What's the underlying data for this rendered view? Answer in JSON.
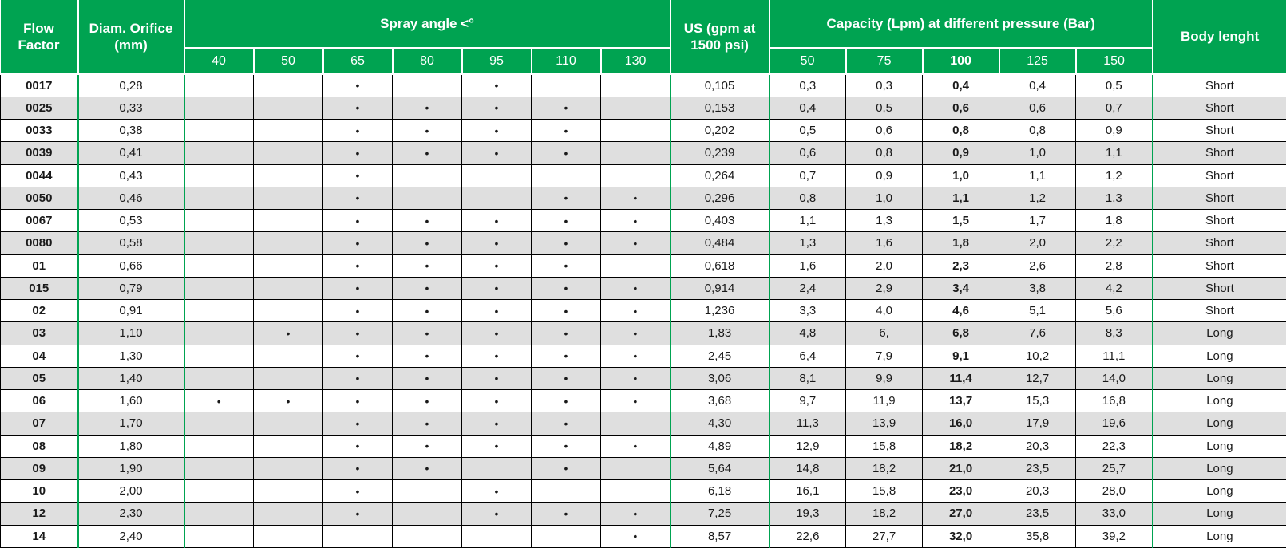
{
  "colors": {
    "header_green": "#00A351",
    "alt_row_gray": "#DFDFDF"
  },
  "table": {
    "header": {
      "flow_factor": "Flow Factor",
      "diam_orifice": "Diam. Orifice (mm)",
      "spray_angle": "Spray angle <°",
      "spray_angle_cols": [
        "40",
        "50",
        "65",
        "80",
        "95",
        "110",
        "130"
      ],
      "us_gpm": "US (gpm at 1500 psi)",
      "capacity": "Capacity (Lpm) at different pressure (Bar)",
      "capacity_cols": [
        "50",
        "75",
        "100",
        "125",
        "150"
      ],
      "body_length": "Body lenght"
    },
    "dot_symbol": "•",
    "rows": [
      {
        "flow": "0017",
        "orifice": "0,28",
        "angles": [
          0,
          0,
          1,
          0,
          1,
          0,
          0
        ],
        "us": "0,105",
        "capacity": [
          "0,3",
          "0,3",
          "0,4",
          "0,4",
          "0,5"
        ],
        "body": "Short"
      },
      {
        "flow": "0025",
        "orifice": "0,33",
        "angles": [
          0,
          0,
          1,
          1,
          1,
          1,
          0
        ],
        "us": "0,153",
        "capacity": [
          "0,4",
          "0,5",
          "0,6",
          "0,6",
          "0,7"
        ],
        "body": "Short"
      },
      {
        "flow": "0033",
        "orifice": "0,38",
        "angles": [
          0,
          0,
          1,
          1,
          1,
          1,
          0
        ],
        "us": "0,202",
        "capacity": [
          "0,5",
          "0,6",
          "0,8",
          "0,8",
          "0,9"
        ],
        "body": "Short"
      },
      {
        "flow": "0039",
        "orifice": "0,41",
        "angles": [
          0,
          0,
          1,
          1,
          1,
          1,
          0
        ],
        "us": "0,239",
        "capacity": [
          "0,6",
          "0,8",
          "0,9",
          "1,0",
          "1,1"
        ],
        "body": "Short"
      },
      {
        "flow": "0044",
        "orifice": "0,43",
        "angles": [
          0,
          0,
          1,
          0,
          0,
          0,
          0
        ],
        "us": "0,264",
        "capacity": [
          "0,7",
          "0,9",
          "1,0",
          "1,1",
          "1,2"
        ],
        "body": "Short"
      },
      {
        "flow": "0050",
        "orifice": "0,46",
        "angles": [
          0,
          0,
          1,
          0,
          0,
          1,
          1
        ],
        "us": "0,296",
        "capacity": [
          "0,8",
          "1,0",
          "1,1",
          "1,2",
          "1,3"
        ],
        "body": "Short"
      },
      {
        "flow": "0067",
        "orifice": "0,53",
        "angles": [
          0,
          0,
          1,
          1,
          1,
          1,
          1
        ],
        "us": "0,403",
        "capacity": [
          "1,1",
          "1,3",
          "1,5",
          "1,7",
          "1,8"
        ],
        "body": "Short"
      },
      {
        "flow": "0080",
        "orifice": "0,58",
        "angles": [
          0,
          0,
          1,
          1,
          1,
          1,
          1
        ],
        "us": "0,484",
        "capacity": [
          "1,3",
          "1,6",
          "1,8",
          "2,0",
          "2,2"
        ],
        "body": "Short"
      },
      {
        "flow": "01",
        "orifice": "0,66",
        "angles": [
          0,
          0,
          1,
          1,
          1,
          1,
          0
        ],
        "us": "0,618",
        "capacity": [
          "1,6",
          "2,0",
          "2,3",
          "2,6",
          "2,8"
        ],
        "body": "Short"
      },
      {
        "flow": "015",
        "orifice": "0,79",
        "angles": [
          0,
          0,
          1,
          1,
          1,
          1,
          1
        ],
        "us": "0,914",
        "capacity": [
          "2,4",
          "2,9",
          "3,4",
          "3,8",
          "4,2"
        ],
        "body": "Short"
      },
      {
        "flow": "02",
        "orifice": "0,91",
        "angles": [
          0,
          0,
          1,
          1,
          1,
          1,
          1
        ],
        "us": "1,236",
        "capacity": [
          "3,3",
          "4,0",
          "4,6",
          "5,1",
          "5,6"
        ],
        "body": "Short"
      },
      {
        "flow": "03",
        "orifice": "1,10",
        "angles": [
          0,
          1,
          1,
          1,
          1,
          1,
          1
        ],
        "us": "1,83",
        "capacity": [
          "4,8",
          "6,",
          "6,8",
          "7,6",
          "8,3"
        ],
        "body": "Long"
      },
      {
        "flow": "04",
        "orifice": "1,30",
        "angles": [
          0,
          0,
          1,
          1,
          1,
          1,
          1
        ],
        "us": "2,45",
        "capacity": [
          "6,4",
          "7,9",
          "9,1",
          "10,2",
          "11,1"
        ],
        "body": "Long"
      },
      {
        "flow": "05",
        "orifice": "1,40",
        "angles": [
          0,
          0,
          1,
          1,
          1,
          1,
          1
        ],
        "us": "3,06",
        "capacity": [
          "8,1",
          "9,9",
          "11,4",
          "12,7",
          "14,0"
        ],
        "body": "Long"
      },
      {
        "flow": "06",
        "orifice": "1,60",
        "angles": [
          1,
          1,
          1,
          1,
          1,
          1,
          1
        ],
        "us": "3,68",
        "capacity": [
          "9,7",
          "11,9",
          "13,7",
          "15,3",
          "16,8"
        ],
        "body": "Long"
      },
      {
        "flow": "07",
        "orifice": "1,70",
        "angles": [
          0,
          0,
          1,
          1,
          1,
          1,
          0
        ],
        "us": "4,30",
        "capacity": [
          "11,3",
          "13,9",
          "16,0",
          "17,9",
          "19,6"
        ],
        "body": "Long"
      },
      {
        "flow": "08",
        "orifice": "1,80",
        "angles": [
          0,
          0,
          1,
          1,
          1,
          1,
          1
        ],
        "us": "4,89",
        "capacity": [
          "12,9",
          "15,8",
          "18,2",
          "20,3",
          "22,3"
        ],
        "body": "Long"
      },
      {
        "flow": "09",
        "orifice": "1,90",
        "angles": [
          0,
          0,
          1,
          1,
          0,
          1,
          0
        ],
        "us": "5,64",
        "capacity": [
          "14,8",
          "18,2",
          "21,0",
          "23,5",
          "25,7"
        ],
        "body": "Long"
      },
      {
        "flow": "10",
        "orifice": "2,00",
        "angles": [
          0,
          0,
          1,
          0,
          1,
          0,
          0
        ],
        "us": "6,18",
        "capacity": [
          "16,1",
          "15,8",
          "23,0",
          "20,3",
          "28,0"
        ],
        "body": "Long"
      },
      {
        "flow": "12",
        "orifice": "2,30",
        "angles": [
          0,
          0,
          1,
          0,
          1,
          1,
          1
        ],
        "us": "7,25",
        "capacity": [
          "19,3",
          "18,2",
          "27,0",
          "23,5",
          "33,0"
        ],
        "body": "Long"
      },
      {
        "flow": "14",
        "orifice": "2,40",
        "angles": [
          0,
          0,
          0,
          0,
          0,
          0,
          1
        ],
        "us": "8,57",
        "capacity": [
          "22,6",
          "27,7",
          "32,0",
          "35,8",
          "39,2"
        ],
        "body": "Long"
      }
    ]
  }
}
